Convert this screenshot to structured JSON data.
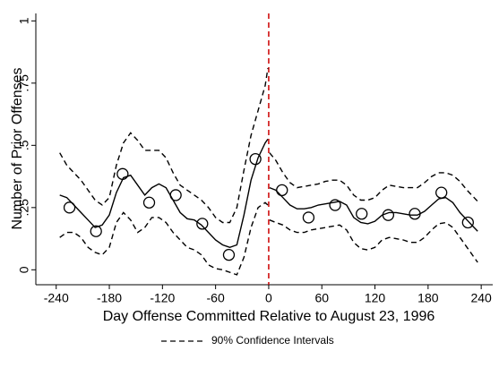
{
  "chart_data": {
    "type": "line",
    "x_label": "Day Offense Committed Relative to August 23, 1996",
    "y_label": "Number of Prior Offenses",
    "xlim": [
      -263,
      253
    ],
    "ylim": [
      -0.06,
      1.03
    ],
    "xticks": [
      -240,
      -180,
      -120,
      -60,
      0,
      60,
      120,
      180,
      240
    ],
    "yticks": [
      0,
      {
        "value": 0.25,
        "label": ".25"
      },
      {
        "value": 0.5,
        "label": ".5"
      },
      {
        "value": 0.75,
        "label": ".75"
      },
      1
    ],
    "cutoff": {
      "x": 0,
      "color": "#cc0000"
    },
    "x": [
      -236,
      -228,
      -220,
      -212,
      -204,
      -196,
      -188,
      -180,
      -172,
      -164,
      -156,
      -148,
      -140,
      -132,
      -124,
      -116,
      -108,
      -100,
      -92,
      -84,
      -76,
      -68,
      -60,
      -52,
      -44,
      -36,
      -28,
      -20,
      -12,
      -4,
      -1,
      0,
      1,
      8,
      16,
      24,
      32,
      40,
      48,
      56,
      64,
      72,
      80,
      88,
      96,
      104,
      112,
      120,
      128,
      136,
      144,
      152,
      160,
      168,
      176,
      184,
      192,
      200,
      208,
      216,
      224,
      232,
      236
    ],
    "fit": {
      "color": "#000000",
      "values": [
        0.3,
        0.29,
        0.26,
        0.23,
        0.2,
        0.17,
        0.18,
        0.22,
        0.31,
        0.37,
        0.38,
        0.34,
        0.3,
        0.33,
        0.345,
        0.33,
        0.28,
        0.23,
        0.205,
        0.2,
        0.18,
        0.15,
        0.12,
        0.1,
        0.09,
        0.1,
        0.22,
        0.36,
        0.45,
        0.51,
        0.525,
        null,
        0.33,
        0.32,
        0.29,
        0.26,
        0.245,
        0.245,
        0.25,
        0.26,
        0.265,
        0.27,
        0.275,
        0.26,
        0.21,
        0.19,
        0.185,
        0.195,
        0.22,
        0.23,
        0.23,
        0.225,
        0.22,
        0.22,
        0.235,
        0.26,
        0.285,
        0.29,
        0.27,
        0.23,
        0.2,
        0.17,
        0.155
      ]
    },
    "ci": {
      "name": "90% Confidence Intervals",
      "color": "#000000",
      "upper": [
        0.47,
        0.42,
        0.39,
        0.36,
        0.32,
        0.28,
        0.26,
        0.29,
        0.42,
        0.51,
        0.55,
        0.52,
        0.48,
        0.48,
        0.48,
        0.45,
        0.39,
        0.34,
        0.32,
        0.3,
        0.28,
        0.25,
        0.21,
        0.19,
        0.19,
        0.25,
        0.4,
        0.54,
        0.64,
        0.74,
        0.81,
        null,
        0.47,
        0.44,
        0.39,
        0.35,
        0.33,
        0.335,
        0.34,
        0.345,
        0.355,
        0.36,
        0.36,
        0.34,
        0.3,
        0.28,
        0.28,
        0.29,
        0.32,
        0.34,
        0.335,
        0.33,
        0.33,
        0.33,
        0.35,
        0.375,
        0.39,
        0.39,
        0.38,
        0.355,
        0.32,
        0.29,
        0.275
      ],
      "lower": [
        0.13,
        0.15,
        0.15,
        0.13,
        0.09,
        0.07,
        0.06,
        0.09,
        0.19,
        0.23,
        0.2,
        0.15,
        0.17,
        0.21,
        0.21,
        0.19,
        0.15,
        0.12,
        0.09,
        0.08,
        0.06,
        0.02,
        0.005,
        0.0,
        -0.01,
        -0.02,
        0.05,
        0.17,
        0.25,
        0.27,
        0.26,
        null,
        0.2,
        0.19,
        0.18,
        0.16,
        0.15,
        0.15,
        0.16,
        0.165,
        0.17,
        0.175,
        0.18,
        0.16,
        0.11,
        0.085,
        0.08,
        0.09,
        0.12,
        0.13,
        0.125,
        0.12,
        0.11,
        0.11,
        0.13,
        0.16,
        0.185,
        0.19,
        0.17,
        0.13,
        0.09,
        0.05,
        0.03
      ]
    },
    "points": {
      "color": "#000000",
      "x": [
        -225,
        -195,
        -165,
        -135,
        -105,
        -75,
        -45,
        -15,
        15,
        45,
        75,
        105,
        135,
        165,
        195,
        225
      ],
      "values": [
        0.25,
        0.155,
        0.385,
        0.27,
        0.3,
        0.185,
        0.06,
        0.445,
        0.32,
        0.21,
        0.26,
        0.225,
        0.22,
        0.225,
        0.31,
        0.19
      ]
    }
  }
}
